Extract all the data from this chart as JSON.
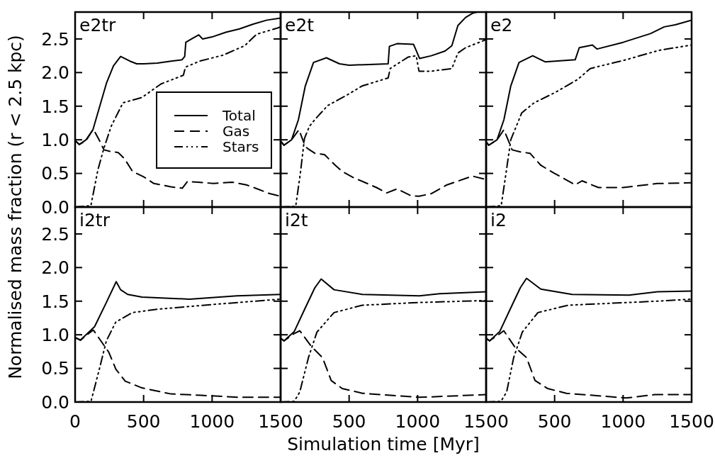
{
  "chart_data": [
    {
      "type": "line",
      "title": "e2tr",
      "ylabel": "Normalised mass fraction  (r < 2.5 kpc)",
      "xlim": [
        0,
        1500
      ],
      "ylim": [
        0,
        2.9
      ],
      "xticks": [
        0,
        500,
        1000,
        1500
      ],
      "yticks": [
        {
          "value": 0,
          "label": "0.0"
        },
        {
          "value": 0.5,
          "label": "0.5"
        },
        {
          "value": 1,
          "label": "1.0"
        },
        {
          "value": 1.5,
          "label": "1.5"
        },
        {
          "value": 2,
          "label": "2.0"
        },
        {
          "value": 2.5,
          "label": "2.5"
        }
      ],
      "tick_labels": "y",
      "legend": "right",
      "series": [
        {
          "name": "Total",
          "color": "#000000",
          "line_style": "solid",
          "x": [
            0,
            30,
            80,
            130,
            180,
            230,
            280,
            332,
            400,
            450,
            500,
            600,
            700,
            780,
            800,
            808,
            850,
            903,
            930,
            1000,
            1100,
            1200,
            1300,
            1400,
            1500
          ],
          "values": [
            0.99,
            0.93,
            1.0,
            1.15,
            1.5,
            1.85,
            2.1,
            2.24,
            2.17,
            2.13,
            2.13,
            2.14,
            2.17,
            2.19,
            2.24,
            2.45,
            2.5,
            2.56,
            2.5,
            2.53,
            2.6,
            2.65,
            2.72,
            2.78,
            2.81
          ]
        },
        {
          "name": "Gas",
          "color": "#000000",
          "line_style": "dashed",
          "x": [
            0,
            30,
            80,
            133,
            180,
            211,
            250,
            315,
            360,
            419,
            500,
            575,
            700,
            783,
            820,
            900,
            1010,
            1145,
            1250,
            1318,
            1420,
            1500
          ],
          "values": [
            0.99,
            0.93,
            0.99,
            1.16,
            0.98,
            0.85,
            0.83,
            0.81,
            0.72,
            0.53,
            0.45,
            0.35,
            0.3,
            0.28,
            0.38,
            0.37,
            0.35,
            0.37,
            0.33,
            0.28,
            0.2,
            0.16
          ]
        },
        {
          "name": "Stars",
          "color": "#000000",
          "line_style": "dotted",
          "x": [
            0,
            115,
            167,
            211,
            263,
            349,
            488,
            626,
            790,
            805,
            909,
            1082,
            1238,
            1325,
            1473,
            1500
          ],
          "values": [
            0,
            0.02,
            0.56,
            0.88,
            1.2,
            1.55,
            1.63,
            1.83,
            1.96,
            2.08,
            2.17,
            2.26,
            2.4,
            2.57,
            2.66,
            2.68
          ]
        }
      ]
    },
    {
      "type": "line",
      "title": "e2t",
      "xlim": [
        0,
        1500
      ],
      "ylim": [
        0,
        2.9
      ],
      "xticks": [
        0,
        500,
        1000,
        1500
      ],
      "yticks": [
        0,
        0.5,
        1,
        1.5,
        2,
        2.5
      ],
      "tick_labels": false,
      "series": [
        {
          "color": "#000000",
          "line_style": "solid",
          "x": [
            0,
            25,
            80,
            130,
            180,
            240,
            334,
            430,
            500,
            785,
            794,
            850,
            970,
            985,
            1014,
            1100,
            1200,
            1250,
            1294,
            1350,
            1400,
            1434
          ],
          "values": [
            0.98,
            0.92,
            1.0,
            1.3,
            1.8,
            2.15,
            2.22,
            2.13,
            2.11,
            2.13,
            2.39,
            2.43,
            2.42,
            2.35,
            2.21,
            2.25,
            2.32,
            2.4,
            2.7,
            2.82,
            2.88,
            2.9
          ]
        },
        {
          "color": "#000000",
          "line_style": "dashed",
          "x": [
            0,
            25,
            80,
            134,
            180,
            204,
            250,
            320,
            400,
            450,
            530,
            700,
            774,
            850,
            950,
            1010,
            1100,
            1214,
            1400,
            1500
          ],
          "values": [
            0.98,
            0.92,
            1.0,
            1.15,
            0.9,
            0.86,
            0.8,
            0.78,
            0.62,
            0.53,
            0.44,
            0.29,
            0.21,
            0.27,
            0.17,
            0.16,
            0.2,
            0.33,
            0.46,
            0.41
          ]
        },
        {
          "color": "#000000",
          "line_style": "dotted",
          "x": [
            0,
            110,
            144,
            174,
            210,
            254,
            344,
            480,
            594,
            785,
            800,
            930,
            990,
            1010,
            1100,
            1250,
            1294,
            1350,
            1500
          ],
          "values": [
            0,
            0.01,
            0.5,
            1.02,
            1.2,
            1.31,
            1.51,
            1.66,
            1.8,
            1.92,
            2.06,
            2.23,
            2.25,
            2.02,
            2.02,
            2.06,
            2.29,
            2.37,
            2.49
          ]
        }
      ]
    },
    {
      "type": "line",
      "title": "e2",
      "xlim": [
        0,
        1500
      ],
      "ylim": [
        0,
        2.9
      ],
      "xticks": [
        0,
        500,
        1000,
        1500
      ],
      "yticks": [
        0,
        0.5,
        1,
        1.5,
        2,
        2.5
      ],
      "tick_labels": false,
      "series": [
        {
          "color": "#000000",
          "line_style": "solid",
          "x": [
            0,
            20,
            80,
            130,
            180,
            240,
            340,
            430,
            650,
            680,
            776,
            810,
            1000,
            1200,
            1300,
            1380,
            1500
          ],
          "values": [
            0.97,
            0.92,
            1.0,
            1.3,
            1.8,
            2.15,
            2.25,
            2.16,
            2.19,
            2.37,
            2.41,
            2.35,
            2.45,
            2.58,
            2.68,
            2.71,
            2.78
          ]
        },
        {
          "color": "#000000",
          "line_style": "dashed",
          "x": [
            0,
            20,
            80,
            130,
            190,
            250,
            320,
            400,
            500,
            650,
            700,
            820,
            1000,
            1250,
            1500
          ],
          "values": [
            0.97,
            0.92,
            1.0,
            1.15,
            0.85,
            0.82,
            0.8,
            0.62,
            0.5,
            0.33,
            0.39,
            0.29,
            0.29,
            0.35,
            0.36
          ]
        },
        {
          "color": "#000000",
          "line_style": "dotted",
          "x": [
            0,
            110,
            145,
            180,
            260,
            350,
            500,
            670,
            760,
            1020,
            1260,
            1500
          ],
          "values": [
            0,
            0.02,
            0.5,
            1.0,
            1.4,
            1.55,
            1.7,
            1.9,
            2.06,
            2.19,
            2.33,
            2.41
          ]
        }
      ]
    },
    {
      "type": "line",
      "title": "i2tr",
      "xlim": [
        0,
        1500
      ],
      "ylim": [
        0,
        2.9
      ],
      "xticks": [
        0,
        500,
        1000,
        1500
      ],
      "yticks": [
        {
          "value": 0,
          "label": "0.0"
        },
        {
          "value": 0.5,
          "label": "0.5"
        },
        {
          "value": 1,
          "label": "1.0"
        },
        {
          "value": 1.5,
          "label": "1.5"
        },
        {
          "value": 2,
          "label": "2.0"
        },
        {
          "value": 2.5,
          "label": "2.5"
        }
      ],
      "series": [
        {
          "color": "#000000",
          "line_style": "solid",
          "x": [
            0,
            21,
            38,
            142,
            228,
            300,
            332,
            384,
            488,
            834,
            1180,
            1500
          ],
          "values": [
            0.95,
            0.94,
            0.92,
            1.12,
            1.48,
            1.79,
            1.67,
            1.6,
            1.56,
            1.53,
            1.58,
            1.6
          ]
        },
        {
          "color": "#000000",
          "line_style": "dashed",
          "x": [
            0,
            40,
            100,
            133,
            246,
            297,
            366,
            488,
            700,
            920,
            1200,
            1500
          ],
          "values": [
            0.96,
            0.92,
            1.02,
            1.07,
            0.74,
            0.49,
            0.31,
            0.21,
            0.12,
            0.1,
            0.07,
            0.07
          ]
        },
        {
          "color": "#000000",
          "line_style": "dotted",
          "x": [
            0,
            116,
            177,
            228,
            297,
            418,
            600,
            1000,
            1500
          ],
          "values": [
            0,
            0.01,
            0.49,
            0.91,
            1.19,
            1.33,
            1.38,
            1.45,
            1.53
          ]
        }
      ]
    },
    {
      "type": "line",
      "title": "i2t",
      "xlabel": "Simulation time [Myr]",
      "xlim": [
        0,
        1500
      ],
      "ylim": [
        0,
        2.9
      ],
      "xticks": [
        {
          "value": 0,
          "label": null
        },
        500,
        1000,
        1500
      ],
      "yticks": [
        0,
        0.5,
        1,
        1.5,
        2,
        2.5
      ],
      "tick_labels": "x",
      "series": [
        {
          "color": "#000000",
          "line_style": "solid",
          "x": [
            0,
            25,
            100,
            180,
            250,
            296,
            390,
            597,
            1013,
            1160,
            1500
          ],
          "values": [
            0.95,
            0.91,
            1.05,
            1.4,
            1.7,
            1.83,
            1.67,
            1.6,
            1.58,
            1.61,
            1.64
          ]
        },
        {
          "color": "#000000",
          "line_style": "dashed",
          "x": [
            0,
            25,
            100,
            140,
            223,
            306,
            369,
            450,
            597,
            1013,
            1500
          ],
          "values": [
            0.95,
            0.91,
            1.02,
            1.06,
            0.83,
            0.66,
            0.32,
            0.2,
            0.13,
            0.07,
            0.11
          ]
        },
        {
          "color": "#000000",
          "line_style": "dotted",
          "x": [
            0,
            99,
            140,
            203,
            265,
            390,
            597,
            1013,
            1500
          ],
          "values": [
            0,
            0.01,
            0.15,
            0.66,
            1.04,
            1.33,
            1.44,
            1.48,
            1.51
          ]
        }
      ]
    },
    {
      "type": "line",
      "title": "i2",
      "xlim": [
        0,
        1500
      ],
      "ylim": [
        0,
        2.9
      ],
      "xticks": [
        {
          "value": 0,
          "label": null
        },
        500,
        1000,
        1500
      ],
      "yticks": [
        0,
        0.5,
        1,
        1.5,
        2,
        2.5
      ],
      "tick_labels": "x",
      "series": [
        {
          "color": "#000000",
          "line_style": "solid",
          "x": [
            0,
            25,
            100,
            180,
            250,
            295,
            399,
            627,
            1043,
            1250,
            1500
          ],
          "values": [
            0.95,
            0.91,
            1.05,
            1.4,
            1.7,
            1.84,
            1.68,
            1.6,
            1.59,
            1.64,
            1.65
          ]
        },
        {
          "color": "#000000",
          "line_style": "dashed",
          "x": [
            0,
            25,
            90,
            129,
            212,
            295,
            357,
            450,
            586,
            1022,
            1230,
            1500
          ],
          "values": [
            0.95,
            0.91,
            1.0,
            1.06,
            0.81,
            0.66,
            0.32,
            0.2,
            0.13,
            0.06,
            0.11,
            0.11
          ]
        },
        {
          "color": "#000000",
          "line_style": "dotted",
          "x": [
            0,
            108,
            150,
            201,
            264,
            378,
            600,
            1250,
            1500
          ],
          "values": [
            0,
            0.01,
            0.15,
            0.66,
            1.04,
            1.33,
            1.44,
            1.5,
            1.53
          ]
        }
      ]
    }
  ]
}
